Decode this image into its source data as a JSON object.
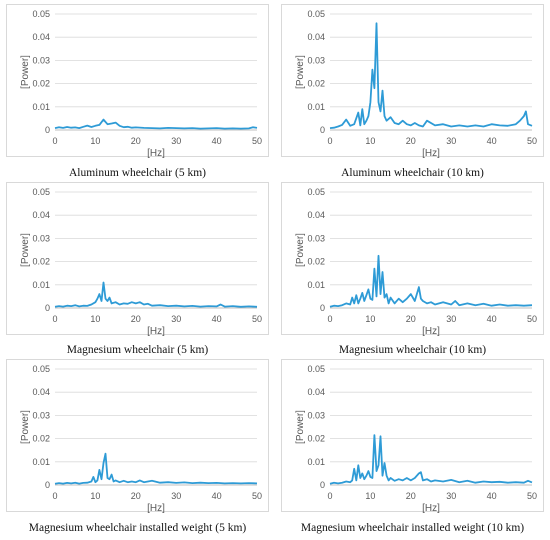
{
  "chart_data": [
    {
      "type": "line",
      "title": "Aluminum wheelchair (5 km)",
      "xlabel": "[Hz]",
      "ylabel": "[Power]",
      "xlim": [
        0,
        50
      ],
      "ylim": [
        0,
        0.05
      ],
      "xticks": [
        0,
        10,
        20,
        30,
        40,
        50
      ],
      "yticks": [
        0,
        0.01,
        0.02,
        0.03,
        0.04,
        0.05
      ],
      "grid": true,
      "color": "#2e9bd6",
      "series": [
        {
          "x": [
            0,
            1,
            2,
            3,
            4,
            5,
            6,
            7,
            8,
            9,
            10,
            11,
            12,
            13,
            14,
            15,
            16,
            17,
            18,
            19,
            20,
            22,
            24,
            26,
            28,
            30,
            32,
            34,
            36,
            38,
            40,
            42,
            44,
            46,
            48,
            49,
            50
          ],
          "y": [
            0.0008,
            0.0012,
            0.0009,
            0.0013,
            0.001,
            0.0011,
            0.0008,
            0.0014,
            0.0019,
            0.0013,
            0.0018,
            0.0022,
            0.0045,
            0.0025,
            0.0028,
            0.0032,
            0.0018,
            0.0012,
            0.0014,
            0.001,
            0.0011,
            0.0009,
            0.0008,
            0.0007,
            0.0009,
            0.0008,
            0.0007,
            0.0008,
            0.0006,
            0.0007,
            0.0008,
            0.0006,
            0.0007,
            0.0006,
            0.0007,
            0.0012,
            0.0009
          ]
        }
      ]
    },
    {
      "type": "line",
      "title": "Aluminum wheelchair (10 km)",
      "xlabel": "[Hz]",
      "ylabel": "[Power]",
      "xlim": [
        0,
        50
      ],
      "ylim": [
        0,
        0.05
      ],
      "xticks": [
        0,
        10,
        20,
        30,
        40,
        50
      ],
      "yticks": [
        0,
        0.01,
        0.02,
        0.03,
        0.04,
        0.05
      ],
      "grid": true,
      "color": "#2e9bd6",
      "series": [
        {
          "x": [
            0,
            1,
            2,
            3,
            4,
            5,
            6,
            7,
            7.5,
            8,
            8.5,
            9,
            9.5,
            10,
            10.5,
            11,
            11.5,
            12,
            12.5,
            13,
            13.5,
            14,
            15,
            16,
            17,
            18,
            19,
            20,
            21,
            22,
            23,
            24,
            26,
            28,
            30,
            32,
            34,
            36,
            38,
            40,
            42,
            44,
            46,
            47,
            48,
            48.5,
            49,
            50
          ],
          "y": [
            0.0008,
            0.001,
            0.0015,
            0.0022,
            0.0045,
            0.0018,
            0.0025,
            0.0075,
            0.002,
            0.009,
            0.0025,
            0.004,
            0.006,
            0.012,
            0.026,
            0.018,
            0.046,
            0.012,
            0.008,
            0.017,
            0.006,
            0.004,
            0.0055,
            0.003,
            0.0025,
            0.004,
            0.0025,
            0.002,
            0.003,
            0.002,
            0.0015,
            0.004,
            0.002,
            0.0025,
            0.0015,
            0.002,
            0.0015,
            0.002,
            0.0015,
            0.0025,
            0.002,
            0.0018,
            0.0025,
            0.004,
            0.006,
            0.008,
            0.0025,
            0.0018
          ]
        }
      ]
    },
    {
      "type": "line",
      "title": "Magnesium wheelchair (5 km)",
      "xlabel": "[Hz]",
      "ylabel": "[Power]",
      "xlim": [
        0,
        50
      ],
      "ylim": [
        0,
        0.05
      ],
      "xticks": [
        0,
        10,
        20,
        30,
        40,
        50
      ],
      "yticks": [
        0,
        0.01,
        0.02,
        0.03,
        0.04,
        0.05
      ],
      "grid": true,
      "color": "#2e9bd6",
      "series": [
        {
          "x": [
            0,
            1,
            2,
            3,
            4,
            5,
            6,
            7,
            8,
            9,
            10,
            10.5,
            11,
            11.5,
            12,
            12.5,
            13,
            13.5,
            14,
            15,
            16,
            17,
            18,
            19,
            20,
            21,
            22,
            23,
            24,
            26,
            28,
            30,
            32,
            34,
            36,
            38,
            40,
            41,
            42,
            44,
            46,
            48,
            50
          ],
          "y": [
            0.0005,
            0.0008,
            0.0006,
            0.001,
            0.0008,
            0.0012,
            0.0007,
            0.001,
            0.0009,
            0.0015,
            0.0025,
            0.004,
            0.006,
            0.003,
            0.011,
            0.004,
            0.003,
            0.0045,
            0.002,
            0.0025,
            0.0015,
            0.002,
            0.0018,
            0.0025,
            0.002,
            0.0025,
            0.0015,
            0.0018,
            0.001,
            0.0012,
            0.0008,
            0.001,
            0.0007,
            0.0009,
            0.0006,
            0.0008,
            0.0007,
            0.0015,
            0.0006,
            0.0008,
            0.0005,
            0.0007,
            0.0005
          ]
        }
      ]
    },
    {
      "type": "line",
      "title": "Magnesium wheelchair (10 km)",
      "xlabel": "[Hz]",
      "ylabel": "[Power]",
      "xlim": [
        0,
        50
      ],
      "ylim": [
        0,
        0.05
      ],
      "xticks": [
        0,
        10,
        20,
        30,
        40,
        50
      ],
      "yticks": [
        0,
        0.01,
        0.02,
        0.03,
        0.04,
        0.05
      ],
      "grid": true,
      "color": "#2e9bd6",
      "series": [
        {
          "x": [
            0,
            1,
            2,
            3,
            4,
            5,
            5.5,
            6,
            6.5,
            7,
            7.5,
            8,
            8.5,
            9,
            9.5,
            10,
            10.5,
            11,
            11.5,
            12,
            12.5,
            13,
            13.5,
            14,
            14.5,
            15,
            16,
            17,
            18,
            19,
            20,
            21,
            22,
            22.5,
            23,
            24,
            25,
            26,
            28,
            30,
            31,
            32,
            34,
            36,
            38,
            40,
            42,
            44,
            46,
            48,
            50
          ],
          "y": [
            0.0005,
            0.001,
            0.0008,
            0.0012,
            0.002,
            0.0015,
            0.0045,
            0.002,
            0.0055,
            0.002,
            0.004,
            0.0065,
            0.003,
            0.0055,
            0.008,
            0.004,
            0.0035,
            0.017,
            0.005,
            0.0225,
            0.006,
            0.0155,
            0.0045,
            0.006,
            0.002,
            0.0045,
            0.002,
            0.004,
            0.0025,
            0.004,
            0.006,
            0.003,
            0.009,
            0.004,
            0.003,
            0.002,
            0.0025,
            0.0015,
            0.0025,
            0.0015,
            0.003,
            0.0012,
            0.002,
            0.0012,
            0.0018,
            0.001,
            0.0015,
            0.001,
            0.0012,
            0.001,
            0.0012
          ]
        }
      ]
    },
    {
      "type": "line",
      "title": "Magnesium wheelchair installed weight (5 km)",
      "xlabel": "[Hz]",
      "ylabel": "[Power]",
      "xlim": [
        0,
        50
      ],
      "ylim": [
        0,
        0.05
      ],
      "xticks": [
        0,
        10,
        20,
        30,
        40,
        50
      ],
      "yticks": [
        0,
        0.01,
        0.02,
        0.03,
        0.04,
        0.05
      ],
      "grid": true,
      "color": "#2e9bd6",
      "series": [
        {
          "x": [
            0,
            1,
            2,
            3,
            4,
            5,
            6,
            7,
            8,
            9,
            9.5,
            10,
            10.5,
            11,
            11.5,
            12,
            12.5,
            13,
            13.5,
            14,
            14.5,
            15,
            16,
            17,
            18,
            19,
            20,
            21,
            22,
            23,
            24,
            26,
            28,
            30,
            32,
            34,
            36,
            38,
            40,
            42,
            44,
            46,
            48,
            50
          ],
          "y": [
            0.0005,
            0.0008,
            0.0006,
            0.0009,
            0.0007,
            0.001,
            0.0006,
            0.0009,
            0.001,
            0.0015,
            0.0035,
            0.0012,
            0.002,
            0.0065,
            0.0025,
            0.0095,
            0.0135,
            0.003,
            0.0025,
            0.0045,
            0.0015,
            0.002,
            0.0012,
            0.0018,
            0.0012,
            0.0015,
            0.0012,
            0.002,
            0.0012,
            0.0015,
            0.0018,
            0.001,
            0.0012,
            0.0009,
            0.0011,
            0.0008,
            0.001,
            0.0008,
            0.0009,
            0.0007,
            0.0008,
            0.0007,
            0.0008,
            0.0007
          ]
        }
      ]
    },
    {
      "type": "line",
      "title": "Magnesium wheelchair installed weight (10 km)",
      "xlabel": "[Hz]",
      "ylabel": "[Power]",
      "xlim": [
        0,
        50
      ],
      "ylim": [
        0,
        0.05
      ],
      "xticks": [
        0,
        10,
        20,
        30,
        40,
        50
      ],
      "yticks": [
        0,
        0.01,
        0.02,
        0.03,
        0.04,
        0.05
      ],
      "grid": true,
      "color": "#2e9bd6",
      "series": [
        {
          "x": [
            0,
            1,
            2,
            3,
            4,
            5,
            5.5,
            6,
            6.5,
            7,
            7.5,
            8,
            8.5,
            9,
            9.5,
            10,
            10.5,
            11,
            11.5,
            12,
            12.5,
            13,
            13.5,
            14,
            14.5,
            15,
            16,
            17,
            18,
            19,
            20,
            21,
            22,
            22.5,
            23,
            24,
            25,
            26,
            28,
            30,
            32,
            34,
            36,
            38,
            40,
            42,
            44,
            46,
            48,
            49,
            50
          ],
          "y": [
            0.0005,
            0.001,
            0.0007,
            0.001,
            0.0015,
            0.0012,
            0.002,
            0.007,
            0.002,
            0.0085,
            0.003,
            0.005,
            0.0025,
            0.004,
            0.006,
            0.0035,
            0.003,
            0.0215,
            0.006,
            0.0085,
            0.021,
            0.004,
            0.0095,
            0.004,
            0.002,
            0.003,
            0.0018,
            0.0025,
            0.002,
            0.003,
            0.002,
            0.003,
            0.005,
            0.0055,
            0.002,
            0.0025,
            0.0015,
            0.002,
            0.0015,
            0.0022,
            0.0012,
            0.0018,
            0.001,
            0.0015,
            0.0012,
            0.0014,
            0.001,
            0.0012,
            0.001,
            0.0018,
            0.0011
          ]
        }
      ]
    }
  ]
}
